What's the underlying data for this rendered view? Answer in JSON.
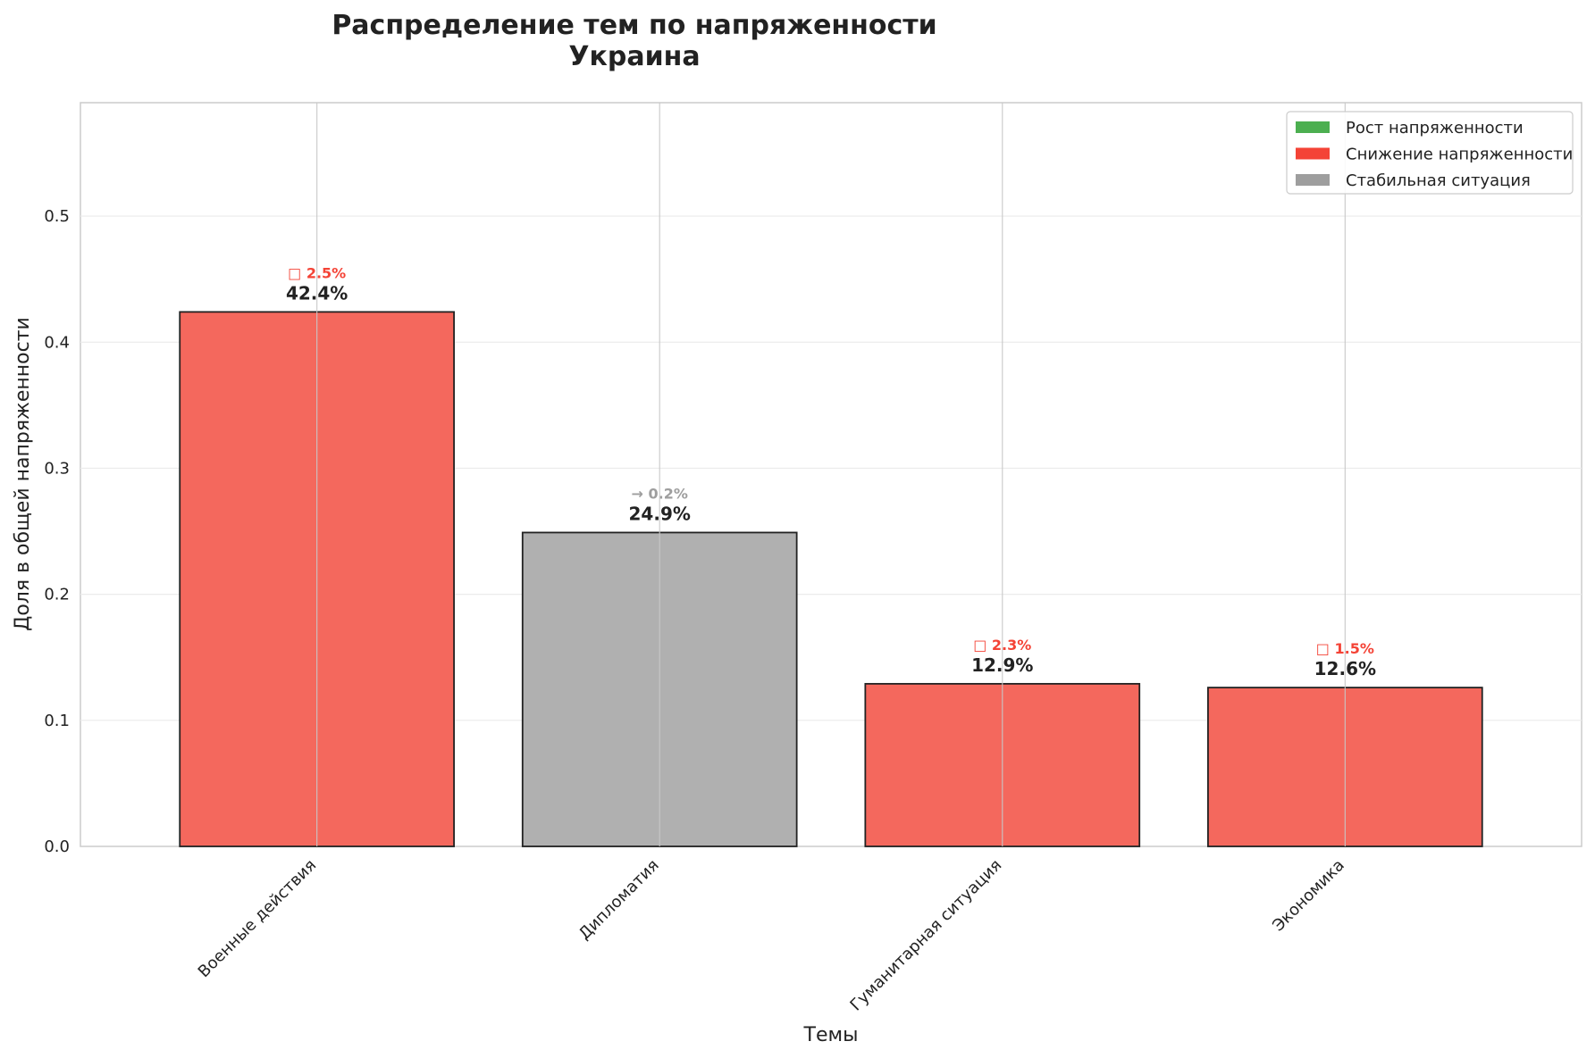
{
  "chart_data": {
    "type": "bar",
    "title": "Распределение тем по напряженности",
    "subtitle": "Украина",
    "xlabel": "Темы",
    "ylabel": "Доля в общей напряженности",
    "categories": [
      "Военные действия",
      "Дипломатия",
      "Гуманитарная ситуация",
      "Экономика"
    ],
    "values": [
      0.424,
      0.249,
      0.129,
      0.126
    ],
    "value_labels": [
      "42.4%",
      "24.9%",
      "12.9%",
      "12.6%"
    ],
    "change_labels": [
      "□ 2.5%",
      "→ 0.2%",
      "□ 2.3%",
      "□ 1.5%"
    ],
    "bar_status": [
      "decrease",
      "stable",
      "decrease",
      "decrease"
    ],
    "ylim": [
      0,
      0.59
    ],
    "yticks": [
      0.0,
      0.1,
      0.2,
      0.3,
      0.4,
      0.5
    ],
    "ytick_labels": [
      "0.0",
      "0.1",
      "0.2",
      "0.3",
      "0.4",
      "0.5"
    ],
    "grid": true,
    "legend": {
      "placement": "top-right",
      "entries": [
        {
          "key": "increase",
          "label": "Рост напряженности",
          "color": "#4caf50"
        },
        {
          "key": "decrease",
          "label": "Снижение напряженности",
          "color": "#f44336"
        },
        {
          "key": "stable",
          "label": "Стабильная ситуация",
          "color": "#9e9e9e"
        }
      ]
    },
    "colors": {
      "decrease_bar": "#f4685d",
      "stable_bar": "#b0b0b0",
      "decrease_text": "#f44336",
      "stable_text": "#9e9e9e"
    }
  }
}
